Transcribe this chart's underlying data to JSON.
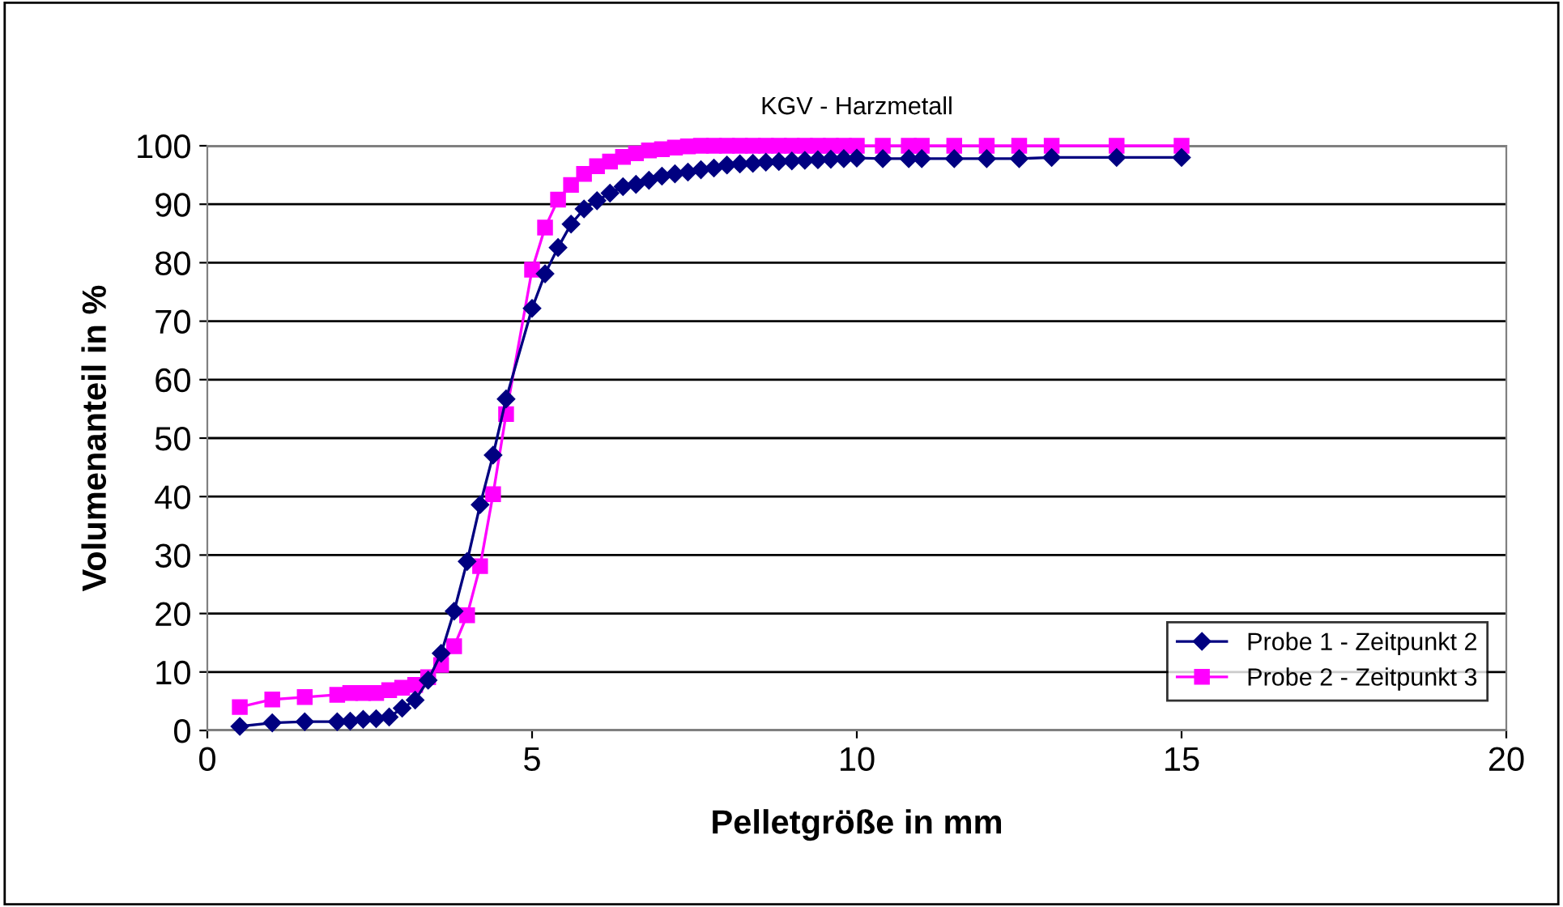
{
  "chart_data": {
    "type": "line",
    "title": "KGV - Harzmetall",
    "xlabel": "Pelletgröße in mm",
    "ylabel": "Volumenanteil in %",
    "xlim": [
      0,
      20
    ],
    "xticks": [
      0,
      5,
      10,
      15,
      20
    ],
    "ylim": [
      0,
      100
    ],
    "yticks": [
      0,
      10,
      20,
      30,
      40,
      50,
      60,
      70,
      80,
      90,
      100
    ],
    "grid": "y",
    "legend": "bottom right",
    "line_style": "solid",
    "series": [
      {
        "name": "Probe 1 - Zeitpunkt 2",
        "color": "#000080",
        "marker": "diamond",
        "x": [
          0.5,
          1,
          1.5,
          2,
          2.2,
          2.4,
          2.6,
          2.8,
          3,
          3.2,
          3.4,
          3.6,
          3.8,
          4,
          4.2,
          4.4,
          4.6,
          5,
          5.2,
          5.4,
          5.6,
          5.8,
          6,
          6.2,
          6.4,
          6.6,
          6.8,
          7,
          7.2,
          7.4,
          7.6,
          7.8,
          8,
          8.2,
          8.4,
          8.6,
          8.8,
          9,
          9.2,
          9.4,
          9.6,
          9.8,
          10,
          10.4,
          10.8,
          11,
          11.5,
          12,
          12.5,
          13,
          14,
          15
        ],
        "values": [
          0.7,
          1.3,
          1.5,
          1.5,
          1.6,
          1.9,
          2.0,
          2.3,
          3.8,
          5.2,
          8.6,
          13.2,
          20.4,
          28.9,
          38.6,
          47.1,
          56.7,
          72.2,
          78.1,
          82.6,
          86.6,
          89.2,
          90.6,
          91.9,
          93.0,
          93.4,
          94.1,
          94.8,
          95.2,
          95.5,
          95.9,
          96.2,
          96.7,
          96.9,
          97.0,
          97.2,
          97.3,
          97.4,
          97.5,
          97.6,
          97.7,
          97.8,
          97.9,
          97.8,
          97.8,
          97.8,
          97.8,
          97.8,
          97.8,
          98.0,
          98.0,
          98.0
        ]
      },
      {
        "name": "Probe 2 - Zeitpunkt 3",
        "color": "#ff00ff",
        "marker": "square",
        "x": [
          0.5,
          1,
          1.5,
          2,
          2.2,
          2.4,
          2.6,
          2.8,
          3,
          3.2,
          3.4,
          3.6,
          3.8,
          4,
          4.2,
          4.4,
          4.6,
          5,
          5.2,
          5.4,
          5.6,
          5.8,
          6,
          6.2,
          6.4,
          6.6,
          6.8,
          7,
          7.2,
          7.4,
          7.6,
          7.8,
          8,
          8.2,
          8.4,
          8.6,
          8.8,
          9,
          9.2,
          9.4,
          9.6,
          9.8,
          10,
          10.4,
          10.8,
          11,
          11.5,
          12,
          12.5,
          13,
          14,
          15
        ],
        "values": [
          4.0,
          5.3,
          5.7,
          6.1,
          6.4,
          6.4,
          6.4,
          6.9,
          7.3,
          7.8,
          9.1,
          11.2,
          14.4,
          19.7,
          28.1,
          40.4,
          54.1,
          78.8,
          86.0,
          90.8,
          93.3,
          95.2,
          96.5,
          97.3,
          98.1,
          98.7,
          99.2,
          99.4,
          99.7,
          99.9,
          100,
          100,
          100,
          100,
          100,
          100,
          100,
          100,
          100,
          100,
          100,
          100,
          100,
          100,
          100,
          100,
          100,
          100,
          100,
          100,
          100,
          100
        ]
      }
    ]
  }
}
